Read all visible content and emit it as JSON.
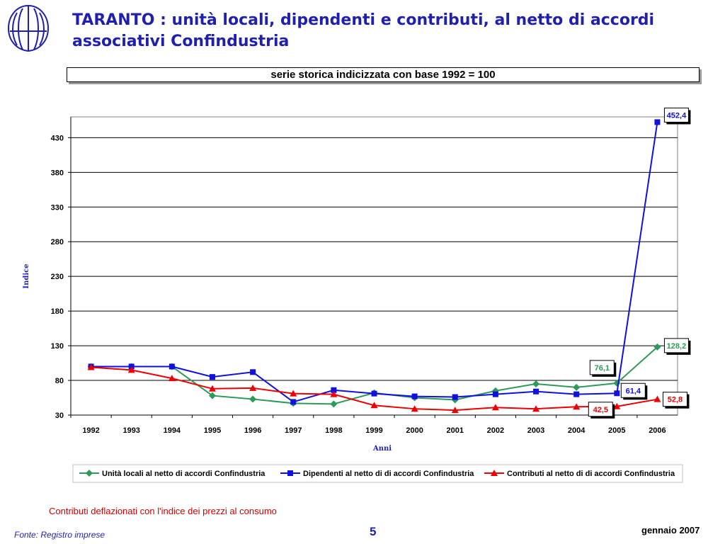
{
  "slide": {
    "title": "TARANTO : unità locali, dipendenti e contributi, al netto di accordi associativi Confindustria",
    "subtitle": "serie storica indicizzata con base 1992 = 100",
    "note": "Contributi deflazionati con l'indice dei prezzi al consumo",
    "source": "Fonte: Registro imprese",
    "page_number": "5",
    "date": "gennaio 2007"
  },
  "colors": {
    "title": "#1f1fb0",
    "note": "#d00000",
    "grid": "#000000"
  },
  "chart_data": {
    "type": "line",
    "xlabel": "Anni",
    "ylabel": "Indice",
    "categories": [
      "1992",
      "1993",
      "1994",
      "1995",
      "1996",
      "1997",
      "1998",
      "1999",
      "2000",
      "2001",
      "2002",
      "2003",
      "2004",
      "2005",
      "2006"
    ],
    "ylim": [
      30,
      460
    ],
    "yticks": [
      30,
      80,
      130,
      180,
      230,
      280,
      330,
      380,
      430
    ],
    "grid": true,
    "legend_position": "bottom",
    "series": [
      {
        "name": "Unità locali al netto di accordi Confindustria",
        "color": "#2e9a5a",
        "marker": "diamond",
        "values": [
          100,
          100,
          100,
          58,
          53,
          47,
          46,
          62,
          55,
          52,
          65,
          75,
          70,
          76.1,
          128.2
        ]
      },
      {
        "name": "Dipendenti al netto di di accordi Confindustria",
        "color": "#1010e0",
        "marker": "square",
        "values": [
          100,
          100,
          100,
          85,
          92,
          49,
          66,
          61,
          57,
          56,
          60,
          64,
          60,
          61.4,
          452.4
        ]
      },
      {
        "name": "Contributi al netto di di accordi Confindustria",
        "color": "#ee0000",
        "marker": "triangle",
        "values": [
          99,
          95,
          83,
          68,
          69,
          61,
          60,
          44,
          39,
          37,
          41,
          39,
          42,
          42.5,
          52.8
        ]
      }
    ],
    "data_labels": [
      {
        "series": 1,
        "index": 14,
        "text": "452,4"
      },
      {
        "series": 0,
        "index": 14,
        "text": "128,2"
      },
      {
        "series": 0,
        "index": 13,
        "text": "76,1"
      },
      {
        "series": 1,
        "index": 13,
        "text": "61,4"
      },
      {
        "series": 2,
        "index": 14,
        "text": "52,8"
      },
      {
        "series": 2,
        "index": 13,
        "text": "42,5"
      }
    ]
  }
}
